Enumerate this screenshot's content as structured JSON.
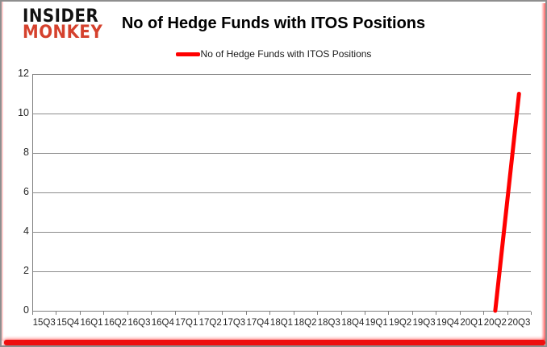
{
  "logo": {
    "line1": "INSIDER",
    "line2": "MONKEY",
    "line1_color": "#111111",
    "line2_color": "#d5412d"
  },
  "header": {
    "title": "No of Hedge Funds with ITOS Positions"
  },
  "legend": {
    "label": "No of Hedge Funds with ITOS Positions",
    "marker_color": "#ff0000"
  },
  "colors": {
    "series_red": "#ff0000",
    "gridline": "#8c8c8c",
    "axis": "#7f7f7f",
    "tick_text": "#262626",
    "frame_border": "#8e8e8e",
    "bottom_bar": "#ee0f0f"
  },
  "chart_data": {
    "type": "line",
    "title": "No of Hedge Funds with ITOS Positions",
    "categories": [
      "15Q3",
      "15Q4",
      "16Q1",
      "16Q2",
      "16Q3",
      "16Q4",
      "17Q1",
      "17Q2",
      "17Q3",
      "17Q4",
      "18Q1",
      "18Q2",
      "18Q3",
      "18Q4",
      "19Q1",
      "19Q2",
      "19Q3",
      "19Q4",
      "20Q1",
      "20Q2",
      "20Q3"
    ],
    "series": [
      {
        "name": "No of Hedge Funds with ITOS Positions",
        "color": "#ff0000",
        "values": [
          null,
          null,
          null,
          null,
          null,
          null,
          null,
          null,
          null,
          null,
          null,
          null,
          null,
          null,
          null,
          null,
          null,
          null,
          null,
          0,
          11
        ]
      }
    ],
    "xlabel": "",
    "ylabel": "",
    "ylim": [
      0,
      12
    ],
    "ytick_step": 2,
    "yticks": [
      0,
      2,
      4,
      6,
      8,
      10,
      12
    ],
    "grid": true,
    "legend_position": "top"
  }
}
